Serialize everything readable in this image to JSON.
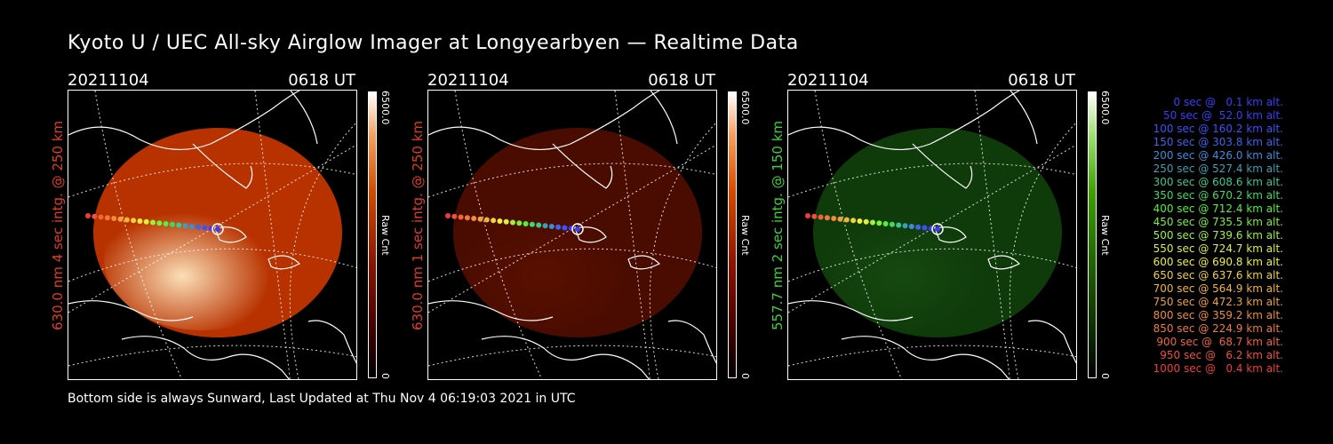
{
  "title": "Kyoto U / UEC All-sky Airglow Imager at Longyearbyen — Realtime Data",
  "footer": "Bottom side is always Sunward, Last Updated at Thu Nov  4 06:19:03 2021 in UTC",
  "panels": [
    {
      "date": "20211104",
      "time": "0618 UT",
      "side_label": "630.0 nm 4 sec intg. @ 250 km",
      "side_label_color": "#e03c28",
      "colorbar_max": "6500.0",
      "colorbar_min": "0",
      "colorbar_unit": "Raw Cnt",
      "scheme": "red-bright"
    },
    {
      "date": "20211104",
      "time": "0618 UT",
      "side_label": "630.0 nm 1 sec intg. @ 250 km",
      "side_label_color": "#e03c28",
      "colorbar_max": "6500.0",
      "colorbar_min": "0",
      "colorbar_unit": "Raw Cnt",
      "scheme": "red-dim"
    },
    {
      "date": "20211104",
      "time": "0618 UT",
      "side_label": "557.7 nm 2 sec intg. @ 150 km",
      "side_label_color": "#3cd23c",
      "colorbar_max": "6500.0",
      "colorbar_min": "0",
      "colorbar_unit": "Raw Cnt",
      "scheme": "green"
    }
  ],
  "legend": [
    {
      "text": "0 sec @   0.1 km alt.",
      "color": "#3c3cff"
    },
    {
      "text": "50 sec @  52.0 km alt.",
      "color": "#3c3cff"
    },
    {
      "text": "100 sec @ 160.2 km alt.",
      "color": "#3c50ff"
    },
    {
      "text": "150 sec @ 303.8 km alt.",
      "color": "#3c64f0"
    },
    {
      "text": "200 sec @ 426.0 km alt.",
      "color": "#3c8cdc"
    },
    {
      "text": "250 sec @ 527.4 km alt.",
      "color": "#3ca0b4"
    },
    {
      "text": "300 sec @ 608.6 km alt.",
      "color": "#3cc88c"
    },
    {
      "text": "350 sec @ 670.2 km alt.",
      "color": "#3cdc64"
    },
    {
      "text": "400 sec @ 712.4 km alt.",
      "color": "#50f03c"
    },
    {
      "text": "450 sec @ 735.5 km alt.",
      "color": "#78f03c"
    },
    {
      "text": "500 sec @ 739.6 km alt.",
      "color": "#a0f03c"
    },
    {
      "text": "550 sec @ 724.7 km alt.",
      "color": "#dcf03c"
    },
    {
      "text": "600 sec @ 690.8 km alt.",
      "color": "#f0f03c"
    },
    {
      "text": "650 sec @ 637.6 km alt.",
      "color": "#f0d23c"
    },
    {
      "text": "700 sec @ 564.9 km alt.",
      "color": "#f0b43c"
    },
    {
      "text": "750 sec @ 472.3 km alt.",
      "color": "#f0a03c"
    },
    {
      "text": "800 sec @ 359.2 km alt.",
      "color": "#f08c3c"
    },
    {
      "text": "850 sec @ 224.9 km alt.",
      "color": "#f0783c"
    },
    {
      "text": "900 sec @  68.7 km alt.",
      "color": "#f0643c"
    },
    {
      "text": "950 sec @   6.2 km alt.",
      "color": "#f0503c"
    },
    {
      "text": "1000 sec @   0.4 km alt.",
      "color": "#f03c3c"
    }
  ]
}
